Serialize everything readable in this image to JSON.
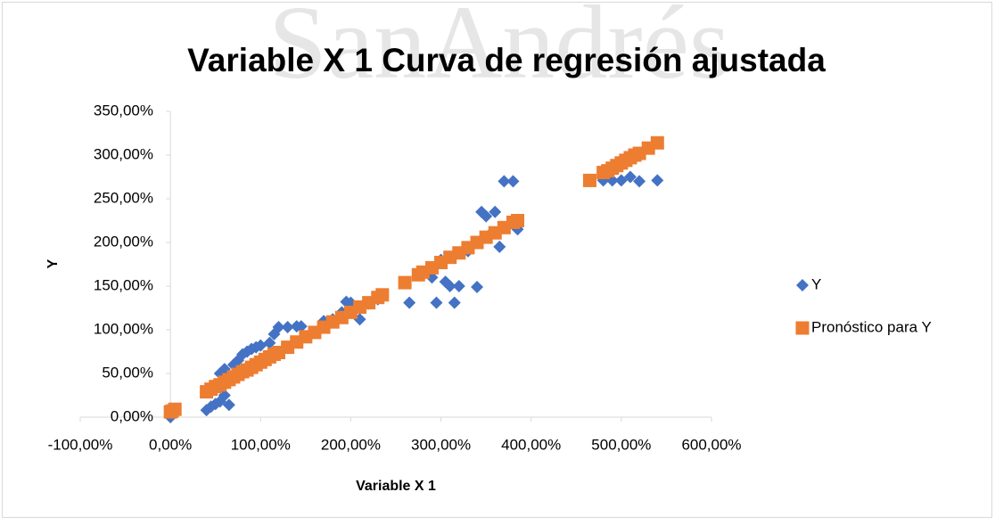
{
  "chart_data": {
    "type": "scatter",
    "title": "Variable X 1 Curva de regresión ajustada",
    "watermark": "SanAndrés",
    "x_label": "Variable X 1",
    "y_label": "Y",
    "xlim": [
      -100,
      600
    ],
    "xticks": [
      {
        "value": -100,
        "label": "-100,00%"
      },
      {
        "value": 0,
        "label": "0,00%"
      },
      {
        "value": 100,
        "label": "100,00%"
      },
      {
        "value": 200,
        "label": "200,00%"
      },
      {
        "value": 300,
        "label": "300,00%"
      },
      {
        "value": 400,
        "label": "400,00%"
      },
      {
        "value": 500,
        "label": "500,00%"
      },
      {
        "value": 600,
        "label": "600,00%"
      }
    ],
    "ylim": [
      0,
      350
    ],
    "yticks": [
      {
        "value": 0,
        "label": "0,00%"
      },
      {
        "value": 50,
        "label": "50,00%"
      },
      {
        "value": 100,
        "label": "100,00%"
      },
      {
        "value": 150,
        "label": "150,00%"
      },
      {
        "value": 200,
        "label": "200,00%"
      },
      {
        "value": 250,
        "label": "250,00%"
      },
      {
        "value": 300,
        "label": "300,00%"
      },
      {
        "value": 350,
        "label": "350,00%"
      }
    ],
    "grid": false,
    "legend": "right",
    "series": [
      {
        "name": "Y",
        "color": "#4472c4",
        "marker": "diamond",
        "x": [
          0,
          40,
          45,
          50,
          55,
          60,
          65,
          55,
          60,
          70,
          75,
          80,
          85,
          90,
          95,
          100,
          110,
          115,
          120,
          130,
          140,
          145,
          170,
          180,
          190,
          195,
          200,
          210,
          220,
          230,
          265,
          290,
          295,
          300,
          305,
          310,
          315,
          320,
          330,
          340,
          345,
          350,
          355,
          360,
          365,
          370,
          380,
          385,
          480,
          490,
          500,
          510,
          520,
          540
        ],
        "values": [
          0,
          8,
          12,
          15,
          18,
          25,
          14,
          50,
          55,
          60,
          65,
          72,
          75,
          78,
          80,
          82,
          85,
          95,
          103,
          103,
          104,
          104,
          110,
          112,
          120,
          132,
          131,
          112,
          130,
          135,
          131,
          160,
          131,
          180,
          155,
          150,
          131,
          150,
          190,
          149,
          235,
          230,
          210,
          235,
          195,
          270,
          270,
          215,
          271,
          271,
          271,
          275,
          270,
          271
        ]
      },
      {
        "name": "Pronóstico para Y",
        "color": "#ed7d31",
        "marker": "square",
        "x": [
          0,
          2,
          5,
          40,
          45,
          50,
          55,
          60,
          65,
          70,
          75,
          80,
          85,
          90,
          95,
          100,
          105,
          110,
          115,
          120,
          130,
          140,
          150,
          160,
          170,
          180,
          190,
          200,
          210,
          220,
          230,
          235,
          260,
          275,
          280,
          290,
          300,
          310,
          320,
          330,
          340,
          350,
          360,
          370,
          380,
          385,
          465,
          480,
          485,
          490,
          495,
          500,
          505,
          510,
          515,
          520,
          530,
          540
        ],
        "values": [
          6,
          7,
          9,
          29,
          32,
          35,
          37,
          40,
          43,
          46,
          49,
          52,
          54,
          57,
          60,
          63,
          66,
          69,
          72,
          74,
          80,
          86,
          92,
          97,
          103,
          109,
          114,
          120,
          126,
          131,
          137,
          140,
          154,
          163,
          166,
          171,
          177,
          183,
          188,
          194,
          200,
          206,
          211,
          217,
          223,
          225,
          271,
          280,
          282,
          285,
          288,
          291,
          294,
          297,
          300,
          302,
          308,
          314
        ]
      }
    ]
  }
}
